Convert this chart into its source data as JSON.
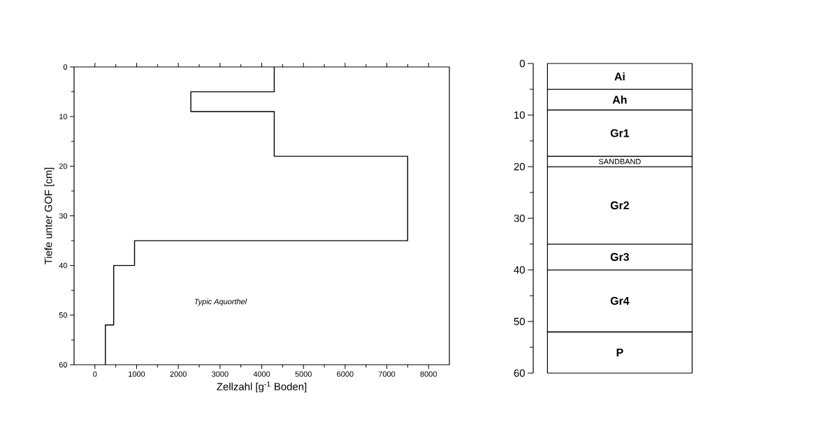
{
  "chart_data": [
    {
      "type": "line",
      "xlabel": "Zellzahl [g$^{-1}$ Boden]",
      "ylabel": "Tiefe unter GOF [cm]",
      "series": [
        {
          "color": "#000000",
          "x": [
            4300,
            4300,
            2300,
            2300,
            4300,
            4300,
            7500,
            7500,
            950,
            950,
            450,
            450,
            250,
            250
          ],
          "values": [
            0,
            5,
            5,
            9,
            9,
            18,
            18,
            35,
            35,
            40,
            40,
            52,
            52,
            60
          ]
        }
      ],
      "xlim": [
        -500,
        8500
      ],
      "xticks": [
        0,
        1000,
        2000,
        3000,
        4000,
        5000,
        6000,
        7000,
        8000
      ],
      "ylim": [
        60,
        0
      ],
      "yticks": [
        0,
        10,
        20,
        30,
        40,
        50,
        60
      ],
      "annotations": [
        "Typic Aquorthel"
      ],
      "grid": false
    },
    {
      "type": "bar",
      "stacked": true,
      "categories": [
        null
      ],
      "series": [
        {
          "name": "Ai",
          "color": "#ffffff",
          "values": [
            5
          ]
        },
        {
          "name": "Ah",
          "color": "#ffffff",
          "values": [
            4
          ]
        },
        {
          "name": "Gr1",
          "color": "#ffffff",
          "values": [
            9
          ]
        },
        {
          "name": "SANDBAND",
          "color": "#ffffff",
          "values": [
            2
          ]
        },
        {
          "name": "Gr2",
          "color": "#ffffff",
          "values": [
            15
          ]
        },
        {
          "name": "Gr3",
          "color": "#ffffff",
          "values": [
            5
          ]
        },
        {
          "name": "Gr4",
          "color": "#ffffff",
          "values": [
            12
          ]
        },
        {
          "name": "P",
          "color": "#ffffff",
          "values": [
            8
          ]
        }
      ],
      "ylim": [
        60,
        0
      ],
      "yticks": [
        0,
        10,
        20,
        30,
        40,
        50,
        60
      ],
      "tick_labels": "y",
      "grid": false
    }
  ]
}
